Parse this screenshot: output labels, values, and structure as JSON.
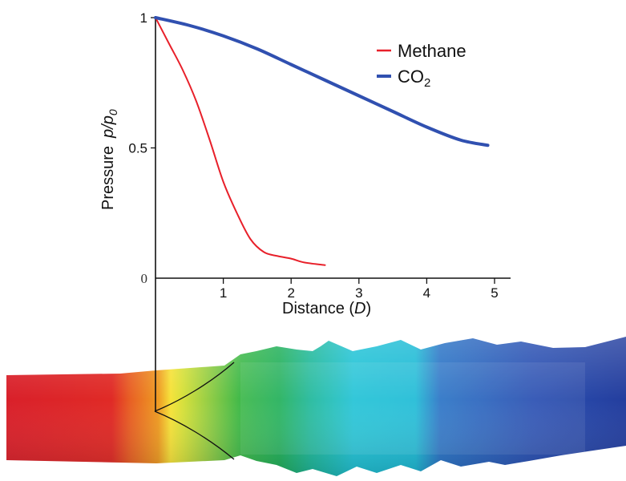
{
  "chart_data": {
    "type": "line",
    "xlabel": {
      "main": "Distance (",
      "var": "D",
      "end": ")"
    },
    "ylabel": {
      "main": "Pressure",
      "var": "p/p",
      "sub": "0"
    },
    "xlim": [
      0,
      5
    ],
    "ylim": [
      0,
      1
    ],
    "x_ticks": [
      "1",
      "2",
      "3",
      "4",
      "5"
    ],
    "y_ticks": {
      "zero": "0",
      "half": "0.5",
      "one": "1"
    },
    "grid": false,
    "legend_position": "top-right",
    "series": [
      {
        "name": "Methane",
        "color": "#e8202a",
        "x": [
          0,
          0.2,
          0.4,
          0.6,
          0.8,
          1.0,
          1.2,
          1.4,
          1.6,
          1.8,
          2.0,
          2.2,
          2.5
        ],
        "y": [
          1.0,
          0.9,
          0.8,
          0.68,
          0.53,
          0.37,
          0.25,
          0.15,
          0.1,
          0.085,
          0.075,
          0.06,
          0.05
        ]
      },
      {
        "name": "CO",
        "name_sub": "2",
        "color": "#3050b0",
        "x": [
          0,
          0.5,
          1.0,
          1.5,
          2.0,
          2.5,
          3.0,
          3.5,
          4.0,
          4.5,
          4.9
        ],
        "y": [
          1.0,
          0.97,
          0.93,
          0.88,
          0.82,
          0.76,
          0.7,
          0.64,
          0.58,
          0.53,
          0.51
        ]
      }
    ]
  }
}
